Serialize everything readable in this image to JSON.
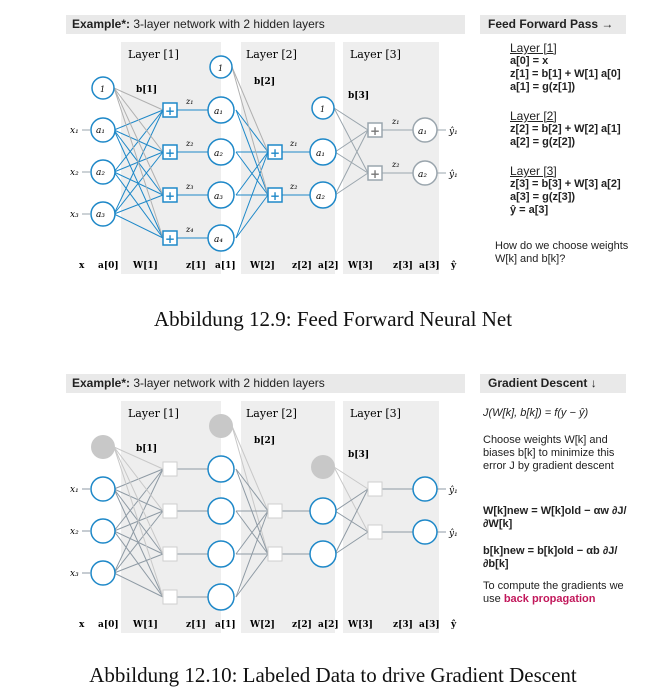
{
  "fig1": {
    "header_bold": "Example*:",
    "header_rest": " 3-layer network with 2 hidden layers",
    "side_header": "Feed Forward Pass →",
    "layer_labels": [
      "Layer [1]",
      "Layer [2]",
      "Layer [3]"
    ],
    "bias_labels": [
      "b[1]",
      "b[2]",
      "b[3]"
    ],
    "bias_value": "1",
    "bottom_labels": [
      "x",
      "a[0]",
      "W[1]",
      "z[1]",
      "a[1]",
      "W[2]",
      "z[2]",
      "a[2]",
      "W[3]",
      "z[3]",
      "a[3]",
      "ŷ"
    ],
    "side": {
      "l1_title": "Layer [1]",
      "l1_eq1": "a[0] = x",
      "l1_eq2": "z[1] = b[1] + W[1] a[0]",
      "l1_eq3": "a[1] = g(z[1])",
      "l2_title": "Layer [2]",
      "l2_eq1": "z[2] = b[2] + W[2] a[1]",
      "l2_eq2": "a[2] = g(z[2])",
      "l3_title": "Layer [3]",
      "l3_eq1": "z[3] = b[3] + W[3] a[2]",
      "l3_eq2": "a[3] = g(z[3])",
      "l3_eq3": "ŷ = a[3]",
      "question": "How do we choose weights W[k] and b[k]?"
    },
    "caption": "Abbildung 12.9: Feed Forward Neural Net"
  },
  "fig2": {
    "header_bold": "Example*:",
    "header_rest": " 3-layer network with 2 hidden layers",
    "side_header": "Gradient Descent ↓",
    "layer_labels": [
      "Layer [1]",
      "Layer [2]",
      "Layer [3]"
    ],
    "bias_labels": [
      "b[1]",
      "b[2]",
      "b[3]"
    ],
    "bottom_labels": [
      "x",
      "a[0]",
      "W[1]",
      "z[1]",
      "a[1]",
      "W[2]",
      "z[2]",
      "a[2]",
      "W[3]",
      "z[3]",
      "a[3]",
      "ŷ"
    ],
    "side": {
      "loss": "J(W[k], b[k]) = f(y − ŷ)",
      "text1": "Choose weights W[k] and biases b[k] to minimize this error J by gradient descent",
      "update_w": "W[k]new = W[k]old − αw ∂J/∂W[k]",
      "update_b": "b[k]new = b[k]old − αb ∂J/∂b[k]",
      "text2": "To compute the gradients we use",
      "text2_highlight": "back propagation"
    },
    "caption": "Abbildung 12.10: Labeled Data to drive Gradient Descent"
  },
  "colors": {
    "blue": "#1e88c8",
    "pink": "#c2185b",
    "gray_node": "#c8c8c8",
    "light_line": "#b0b0b0"
  }
}
